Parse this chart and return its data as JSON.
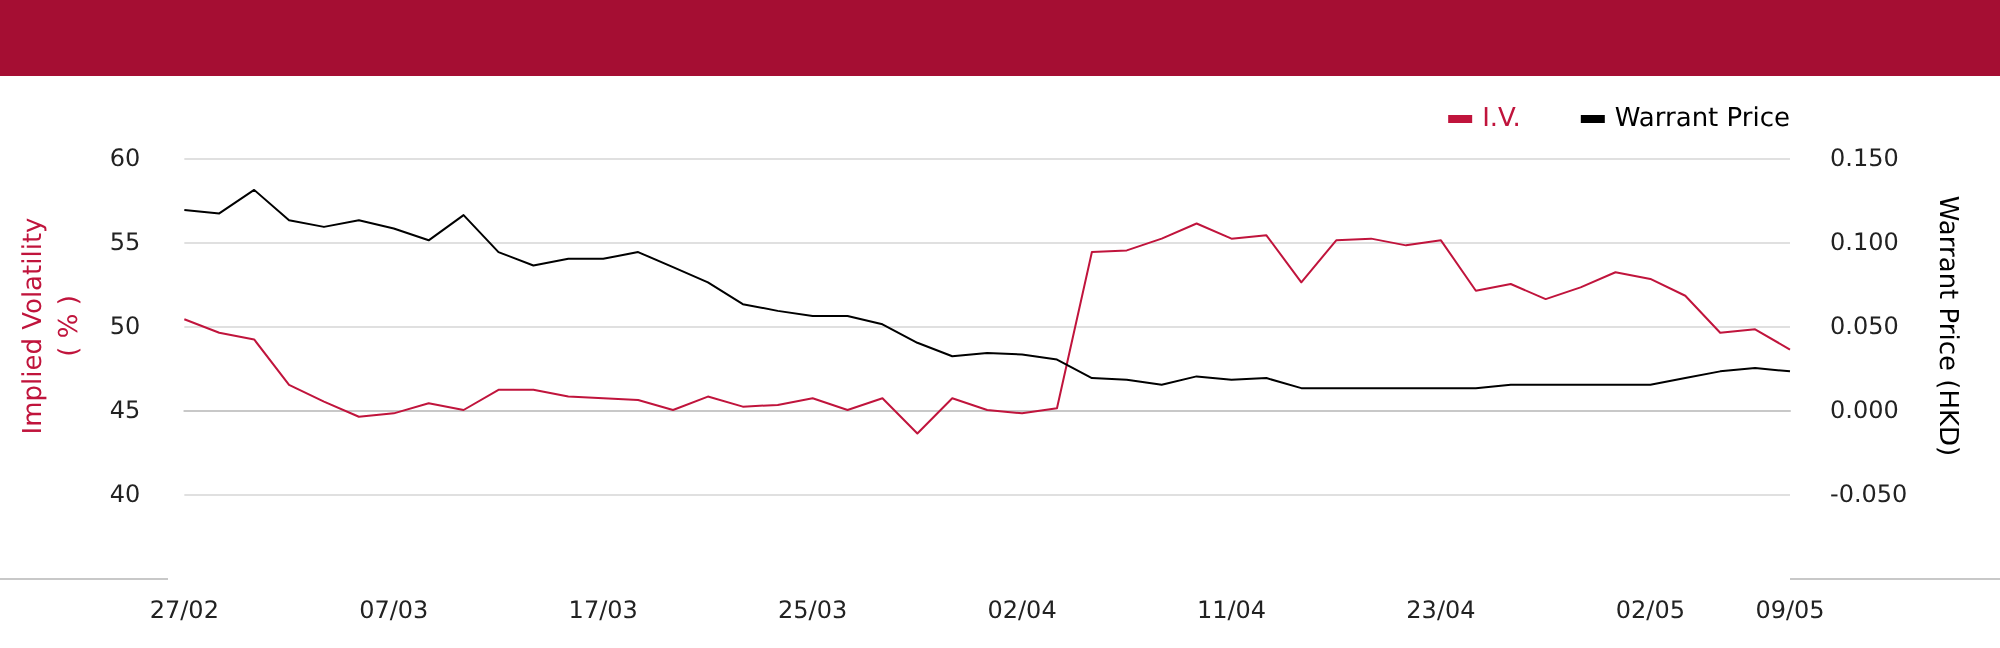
{
  "chart_data": {
    "type": "line",
    "categories": [
      "27/02",
      null,
      null,
      null,
      null,
      null,
      "07/03",
      null,
      null,
      null,
      null,
      null,
      "17/03",
      null,
      null,
      null,
      null,
      null,
      "25/03",
      null,
      null,
      null,
      null,
      null,
      "02/04",
      null,
      null,
      null,
      null,
      null,
      "11/04",
      null,
      null,
      null,
      null,
      null,
      "23/04",
      null,
      null,
      null,
      null,
      null,
      "02/05",
      null,
      null,
      null,
      "09/05"
    ],
    "series": [
      {
        "name": "I.V.",
        "color": "#c0143c",
        "values": [
          50.4,
          49.6,
          49.2,
          46.5,
          45.5,
          44.6,
          44.8,
          45.4,
          45.0,
          46.2,
          46.2,
          45.8,
          45.7,
          45.6,
          45.0,
          45.8,
          45.2,
          45.3,
          45.7,
          45.0,
          45.7,
          43.6,
          45.7,
          45.0,
          44.8,
          45.1,
          54.4,
          54.5,
          55.2,
          56.1,
          55.2,
          55.4,
          52.6,
          55.1,
          55.2,
          54.8,
          55.1,
          52.1,
          52.5,
          51.6,
          52.3,
          53.2,
          52.8,
          51.8,
          49.6,
          49.8,
          48.6
        ]
      },
      {
        "name": "Warrant Price",
        "color": "#000000",
        "axis": "y2",
        "values": [
          0.119,
          0.117,
          0.131,
          0.113,
          0.109,
          0.113,
          0.108,
          0.101,
          0.116,
          0.094,
          0.086,
          0.09,
          0.09,
          0.094,
          0.085,
          0.076,
          0.063,
          0.059,
          0.056,
          0.056,
          0.051,
          0.04,
          0.032,
          0.034,
          0.033,
          0.03,
          0.019,
          0.018,
          0.015,
          0.02,
          0.018,
          0.019,
          0.013,
          0.013,
          0.013,
          0.013,
          0.013,
          0.013,
          0.015,
          0.015,
          0.015,
          0.015,
          0.015,
          0.019,
          0.023,
          0.025,
          0.023
        ]
      }
    ],
    "ylabel": "Implied Volatility\n( % )",
    "y2label": "Warrant Price (HKD)",
    "ylim": [
      40,
      60
    ],
    "yticks": [
      40,
      45,
      50,
      55,
      60
    ],
    "y2lim": [
      -0.05,
      0.15
    ],
    "y2ticks": [
      {
        "value": -0.05,
        "label": "-0.050"
      },
      {
        "value": 0,
        "label": "0.000"
      },
      {
        "value": 0.05,
        "label": "0.050"
      },
      {
        "value": 0.1,
        "label": "0.100"
      },
      {
        "value": 0.15,
        "label": "0.150"
      }
    ],
    "grid": "y",
    "legend": "top right",
    "marker": "none",
    "line_style": "solid"
  }
}
